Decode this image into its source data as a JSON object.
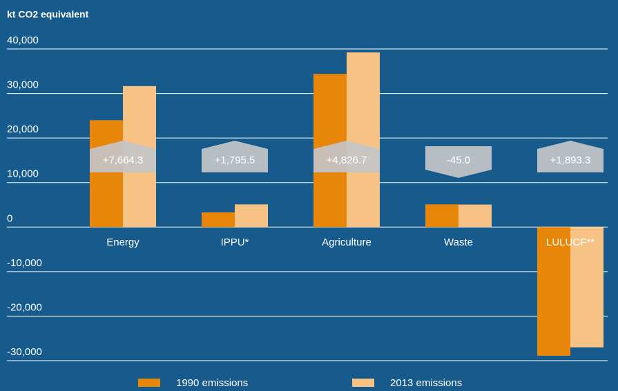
{
  "chart_data": {
    "type": "bar",
    "title": "kt CO2 equivalent",
    "categories": [
      "Energy",
      "IPPU*",
      "Agriculture",
      "Waste",
      "LULUCF**"
    ],
    "series": [
      {
        "name": "1990 emissions",
        "color": "#e8860a",
        "values": [
          24000,
          3300,
          34400,
          5100,
          -28900
        ]
      },
      {
        "name": "2013 emissions",
        "color": "#f6c384",
        "values": [
          31664,
          5096,
          39227,
          5055,
          -27007
        ]
      }
    ],
    "changes": [
      {
        "value": 7664.3,
        "label": "+7,664.3"
      },
      {
        "value": 1795.5,
        "label": "+1,795.5"
      },
      {
        "value": 4826.7,
        "label": "+4,826.7"
      },
      {
        "value": -45.0,
        "label": "-45.0"
      },
      {
        "value": 1893.3,
        "label": "+1,893.3"
      }
    ],
    "ylim": [
      -30000,
      40000
    ],
    "yticks": [
      {
        "value": 40000,
        "label": "40,000"
      },
      {
        "value": 30000,
        "label": "30,000"
      },
      {
        "value": 20000,
        "label": "20,000"
      },
      {
        "value": 10000,
        "label": "10,000"
      },
      0,
      {
        "value": -10000,
        "label": "-10,000"
      },
      {
        "value": -20000,
        "label": "-20,000"
      },
      {
        "value": -30000,
        "label": "-30,000"
      }
    ],
    "grid": true
  }
}
